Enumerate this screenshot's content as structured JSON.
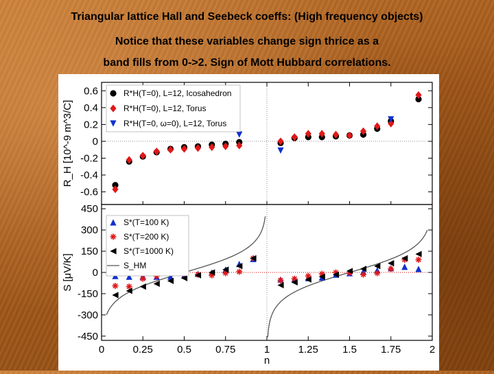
{
  "slide": {
    "title_line1": "Triangular lattice Hall and Seebeck coeffs: (High frequency objects)",
    "title_line2": "Notice that these variables change sign thrice as a",
    "title_line3": "band fills from 0->2. Sign of Mott Hubbard correlations."
  },
  "chart_data": [
    {
      "type": "scatter",
      "title": "",
      "ylabel": "R_H [10^-9 m^3/C]",
      "xlim": [
        0,
        2
      ],
      "ylim": [
        -0.75,
        0.7
      ],
      "yticks": [
        "-0.6",
        "-0.4",
        "-0.2",
        "0",
        "0.2",
        "0.4",
        "0.6"
      ],
      "ytick_values": [
        -0.6,
        -0.4,
        -0.2,
        0,
        0.2,
        0.4,
        0.6
      ],
      "grid": false,
      "legend_position": "top-left",
      "series": [
        {
          "name": "R*H(T=0), L=12, Icosahedron",
          "color": "#000000",
          "marker": "circle",
          "x": [
            0.083,
            0.167,
            0.25,
            0.333,
            0.417,
            0.5,
            0.583,
            0.667,
            0.75,
            0.833,
            1.083,
            1.167,
            1.25,
            1.333,
            1.417,
            1.5,
            1.583,
            1.667,
            1.75,
            1.917
          ],
          "y": [
            -0.52,
            -0.24,
            -0.18,
            -0.13,
            -0.09,
            -0.07,
            -0.06,
            -0.04,
            -0.03,
            -0.01,
            -0.02,
            0.04,
            0.05,
            0.05,
            0.06,
            0.07,
            0.08,
            0.15,
            0.24,
            0.5
          ]
        },
        {
          "name": "R*H(T=0), L=12, Torus",
          "color": "#e01818",
          "marker": "diamond",
          "x": [
            0.083,
            0.167,
            0.25,
            0.333,
            0.417,
            0.5,
            0.583,
            0.667,
            0.75,
            0.833,
            1.083,
            1.167,
            1.25,
            1.333,
            1.417,
            1.5,
            1.583,
            1.667,
            1.75,
            1.917
          ],
          "y": [
            -0.57,
            -0.22,
            -0.17,
            -0.12,
            -0.1,
            -0.09,
            -0.08,
            -0.07,
            -0.06,
            -0.05,
            0.0,
            0.05,
            0.09,
            0.09,
            0.08,
            0.07,
            0.12,
            0.18,
            0.21,
            0.55
          ]
        },
        {
          "name": "R*H(T=0, ω=0), L=12, Torus",
          "color": "#1030d0",
          "marker": "triangle-down",
          "x": [
            0.833,
            1.083,
            1.75
          ],
          "y": [
            0.08,
            -0.11,
            0.26
          ]
        }
      ]
    },
    {
      "type": "scatter",
      "title": "",
      "xlabel": "n",
      "ylabel": "S [μV/K]",
      "xlim": [
        0,
        2
      ],
      "ylim": [
        -480,
        480
      ],
      "xticks": [
        "0",
        "0.25",
        "0.5",
        "0.75",
        "1",
        "1.25",
        "1.5",
        "1.75",
        "2"
      ],
      "xtick_values": [
        0,
        0.25,
        0.5,
        0.75,
        1,
        1.25,
        1.5,
        1.75,
        2
      ],
      "yticks": [
        "-450",
        "-300",
        "-150",
        "0",
        "150",
        "300",
        "450"
      ],
      "ytick_values": [
        -450,
        -300,
        -150,
        0,
        150,
        300,
        450
      ],
      "grid": false,
      "legend_position": "top-left",
      "series": [
        {
          "name": "S*(T=100 K)",
          "color": "#1030d0",
          "marker": "triangle-up",
          "x": [
            0.083,
            0.167,
            0.25,
            0.333,
            0.417,
            0.5,
            0.583,
            0.667,
            0.75,
            0.833,
            0.917,
            1.083,
            1.167,
            1.25,
            1.333,
            1.417,
            1.5,
            1.583,
            1.667,
            1.75,
            1.833,
            1.917
          ],
          "y": [
            -25,
            -30,
            -30,
            -30,
            -30,
            -20,
            -10,
            0,
            20,
            60,
            95,
            -50,
            -45,
            -40,
            -35,
            -15,
            -5,
            5,
            15,
            30,
            40,
            25
          ]
        },
        {
          "name": "S*(T=200 K)",
          "color": "#e01818",
          "marker": "star",
          "x": [
            0.083,
            0.167,
            0.25,
            0.333,
            0.417,
            0.5,
            0.583,
            0.667,
            0.75,
            0.833,
            0.917,
            1.083,
            1.167,
            1.25,
            1.333,
            1.417,
            1.5,
            1.583,
            1.667,
            1.75,
            1.833,
            1.917
          ],
          "y": [
            -95,
            -100,
            -45,
            -25,
            0,
            -10,
            -15,
            -20,
            -5,
            5,
            100,
            -55,
            -45,
            -25,
            -10,
            0,
            -5,
            -15,
            -5,
            25,
            90,
            90
          ]
        },
        {
          "name": "S*(T=1000 K)",
          "color": "#000000",
          "marker": "triangle-left",
          "x": [
            0.083,
            0.167,
            0.25,
            0.333,
            0.417,
            0.5,
            0.583,
            0.667,
            0.75,
            0.833,
            0.917,
            1.083,
            1.167,
            1.25,
            1.333,
            1.417,
            1.5,
            1.583,
            1.667,
            1.75,
            1.833,
            1.917
          ],
          "y": [
            -160,
            -130,
            -100,
            -80,
            -60,
            -40,
            -20,
            0,
            20,
            45,
            100,
            -90,
            -70,
            -50,
            -30,
            -15,
            10,
            25,
            45,
            65,
            100,
            130
          ]
        },
        {
          "name": "S_HM",
          "color": "#555555",
          "marker": "line",
          "formula": "S_HM(n) = 86.17 * ln(n/(1-n)) for n<1, and -86.17*ln((2-n)/(n-1)) mirrored for n>1"
        }
      ]
    }
  ]
}
